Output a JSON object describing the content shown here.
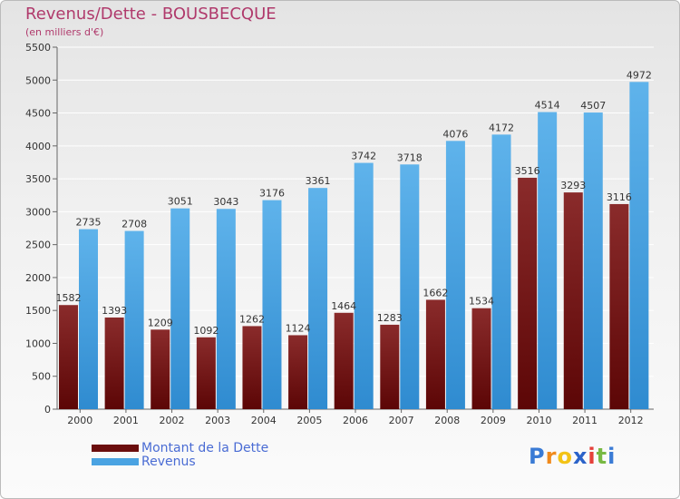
{
  "header": {
    "title": "Revenus/Dette - BOUSBECQUE",
    "subtitle": "(en milliers d'€)"
  },
  "legend": {
    "items": [
      {
        "label": "Montant de la Dette",
        "color": "#6b0d0d"
      },
      {
        "label": "Revenus",
        "color": "#4aa3e2"
      }
    ]
  },
  "logo": {
    "letters": [
      "P",
      "r",
      "o",
      "x",
      "i",
      "t",
      "i"
    ],
    "colors": [
      "#3a7bd5",
      "#f08a1c",
      "#f3c316",
      "#2b63c9",
      "#e5403a",
      "#78b943",
      "#3a7bd5"
    ]
  },
  "colors": {
    "debt_top": "#8a2b2b",
    "debt_bottom": "#5c0606",
    "revenue_top": "#5fb3eb",
    "revenue_bottom": "#2f8bd0",
    "grid": "#ffffff",
    "axis_text": "#333333"
  },
  "chart_data": {
    "type": "bar",
    "title": "Revenus/Dette - BOUSBECQUE",
    "subtitle": "(en milliers d'€)",
    "xlabel": "",
    "ylabel": "",
    "ylim": [
      0,
      5500
    ],
    "ytick_step": 500,
    "grid": true,
    "categories": [
      "2000",
      "2001",
      "2002",
      "2003",
      "2004",
      "2005",
      "2006",
      "2007",
      "2008",
      "2009",
      "2010",
      "2011",
      "2012"
    ],
    "series": [
      {
        "name": "Montant de la Dette",
        "values": [
          1582,
          1393,
          1209,
          1092,
          1262,
          1124,
          1464,
          1283,
          1662,
          1534,
          3516,
          3293,
          3116
        ],
        "labels": [
          "1582",
          "1393",
          "1209",
          "1092",
          "1262",
          "1124",
          "1464",
          "1283",
          "1662",
          "1534",
          "3516",
          "3293",
          "3116"
        ]
      },
      {
        "name": "Revenus",
        "values": [
          2735,
          2708,
          3051,
          3043,
          3176,
          3361,
          3742,
          3718,
          4076,
          4172,
          4514,
          4507,
          4972
        ],
        "labels": [
          "2735",
          "2708",
          "3051",
          "3043",
          "3176",
          "3361",
          "3742",
          "3718",
          "4076",
          "4172",
          "4514",
          "4507",
          "4972"
        ]
      }
    ]
  }
}
